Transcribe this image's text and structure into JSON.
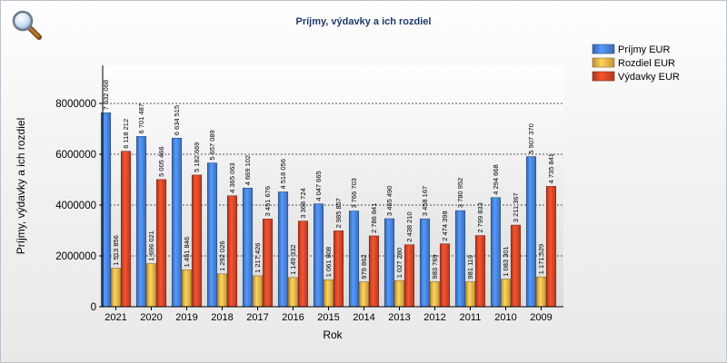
{
  "toolbar": {
    "zoom_icon": "magnifier-icon"
  },
  "chart_data": {
    "type": "bar",
    "title": "Príjmy, výdavky a ich rozdiel",
    "xlabel": "Rok",
    "ylabel": "Príjmy, výdavky a ich rozdiel",
    "categories": [
      "2021",
      "2020",
      "2019",
      "2018",
      "2017",
      "2016",
      "2015",
      "2014",
      "2013",
      "2012",
      "2011",
      "2010",
      "2009"
    ],
    "ylim": [
      0,
      9500000
    ],
    "yticks": [
      0,
      2000000,
      4000000,
      6000000,
      8000000
    ],
    "ytick_labels": [
      "0",
      "2000000",
      "4000000",
      "6000000",
      "8000000"
    ],
    "grid": true,
    "legend_position": "top-right",
    "series": [
      {
        "name": "Príjmy EUR",
        "color": "#4a86e0",
        "values": [
          7632068,
          6701487,
          6634515,
          5657089,
          4669102,
          4518056,
          4047665,
          3766703,
          3465490,
          3458167,
          3780952,
          4294668,
          5907370
        ],
        "labels": [
          "7 632 068",
          "6 701 487",
          "6 634 515",
          "5 657 089",
          "4 669 102",
          "4 518 056",
          "4 047 665",
          "3 766 703",
          "3 465 490",
          "3 458 167",
          "3 780 952",
          "4 294 668",
          "5 907 370"
        ]
      },
      {
        "name": "Rozdiel EUR",
        "color": "#f2b94d",
        "values": [
          1513856,
          1696021,
          1451846,
          1292026,
          1217426,
          1149332,
          1061808,
          979862,
          1027280,
          983769,
          981119,
          1083301,
          1171529
        ],
        "labels": [
          "1 513 856",
          "1 696 021",
          "1 451 846",
          "1 292 026",
          "1 217 426",
          "1 149 332",
          "1 061 808",
          "979 862",
          "1 027 280",
          "983 769",
          "981 119",
          "1 083 301",
          "1 171 529"
        ]
      },
      {
        "name": "Výdavky EUR",
        "color": "#d9482a",
        "values": [
          6118212,
          5005466,
          5182669,
          4365063,
          3451676,
          3368724,
          2985857,
          2786841,
          2438210,
          2474398,
          2799833,
          3211367,
          4735841
        ],
        "labels": [
          "6 118 212",
          "5 005 466",
          "5 182 669",
          "4 365 063",
          "3 451 676",
          "3 368 724",
          "2 985 857",
          "2 786 841",
          "2 438 210",
          "2 474 398",
          "2 799 833",
          "3 211 367",
          "4 735 841"
        ]
      }
    ]
  }
}
